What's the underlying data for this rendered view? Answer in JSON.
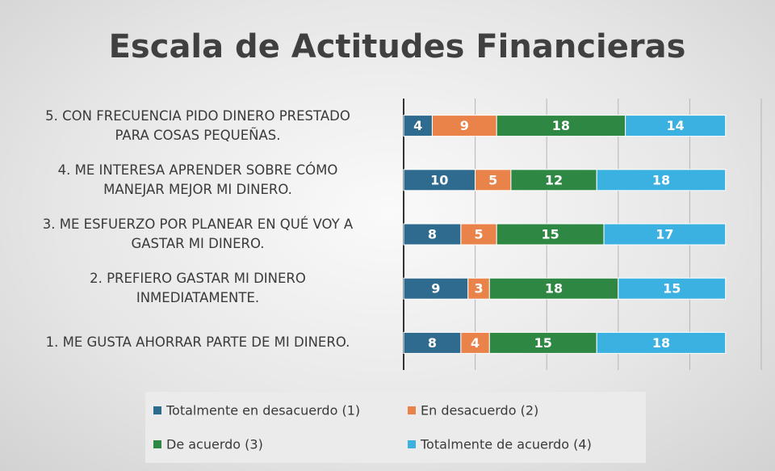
{
  "chart_data": {
    "type": "stacked_barh",
    "title": "Escala de Actitudes Financieras",
    "categories": [
      "1. ME GUSTA AHORRAR PARTE DE MI DINERO.",
      "2. PREFIERO GASTAR MI DINERO\nINMEDIATAMENTE.",
      "3. ME ESFUERZO POR PLANEAR EN QUÉ VOY A\nGASTAR MI DINERO.",
      "4. ME INTERESA APRENDER SOBRE CÓMO\nMANEJAR MEJOR MI DINERO.",
      "5. CON FRECUENCIA PIDO DINERO PRESTADO\nPARA COSAS PEQUEÑAS."
    ],
    "series": [
      {
        "name": "Totalmente en desacuerdo (1)",
        "color": "#2f6a8f",
        "values": [
          8,
          9,
          8,
          10,
          4
        ]
      },
      {
        "name": "En desacuerdo (2)",
        "color": "#e9834a",
        "values": [
          4,
          3,
          5,
          5,
          9
        ]
      },
      {
        "name": "De acuerdo (3)",
        "color": "#2e8742",
        "values": [
          15,
          18,
          15,
          12,
          18
        ]
      },
      {
        "name": "Totalmente de acuerdo (4)",
        "color": "#3bb1e1",
        "values": [
          18,
          15,
          17,
          18,
          14
        ]
      }
    ],
    "xlim": [
      0,
      50
    ],
    "xticks": [
      0,
      10,
      20,
      30,
      40,
      50
    ],
    "grid": true
  }
}
